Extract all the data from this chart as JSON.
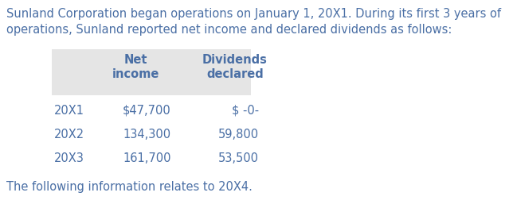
{
  "intro_text_line1": "Sunland Corporation began operations on January 1, 20X1. During its first 3 years of",
  "intro_text_line2": "operations, Sunland reported net income and declared dividends as follows:",
  "footer_text": "The following information relates to 20X4.",
  "col_header_1a": "Net",
  "col_header_1b": "income",
  "col_header_2a": "Dividends",
  "col_header_2b": "declared",
  "rows": [
    {
      "year": "20X1",
      "net_income": "$47,700",
      "dividends": "$ –0–"
    },
    {
      "year": "20X2",
      "net_income": "134,300",
      "dividends": "59,800"
    },
    {
      "year": "20X3",
      "net_income": "161,700",
      "dividends": "53,500"
    }
  ],
  "text_color": "#4a6fa5",
  "table_header_bg": "#e5e5e5",
  "bg_color": "#ffffff",
  "font_size": 10.5
}
